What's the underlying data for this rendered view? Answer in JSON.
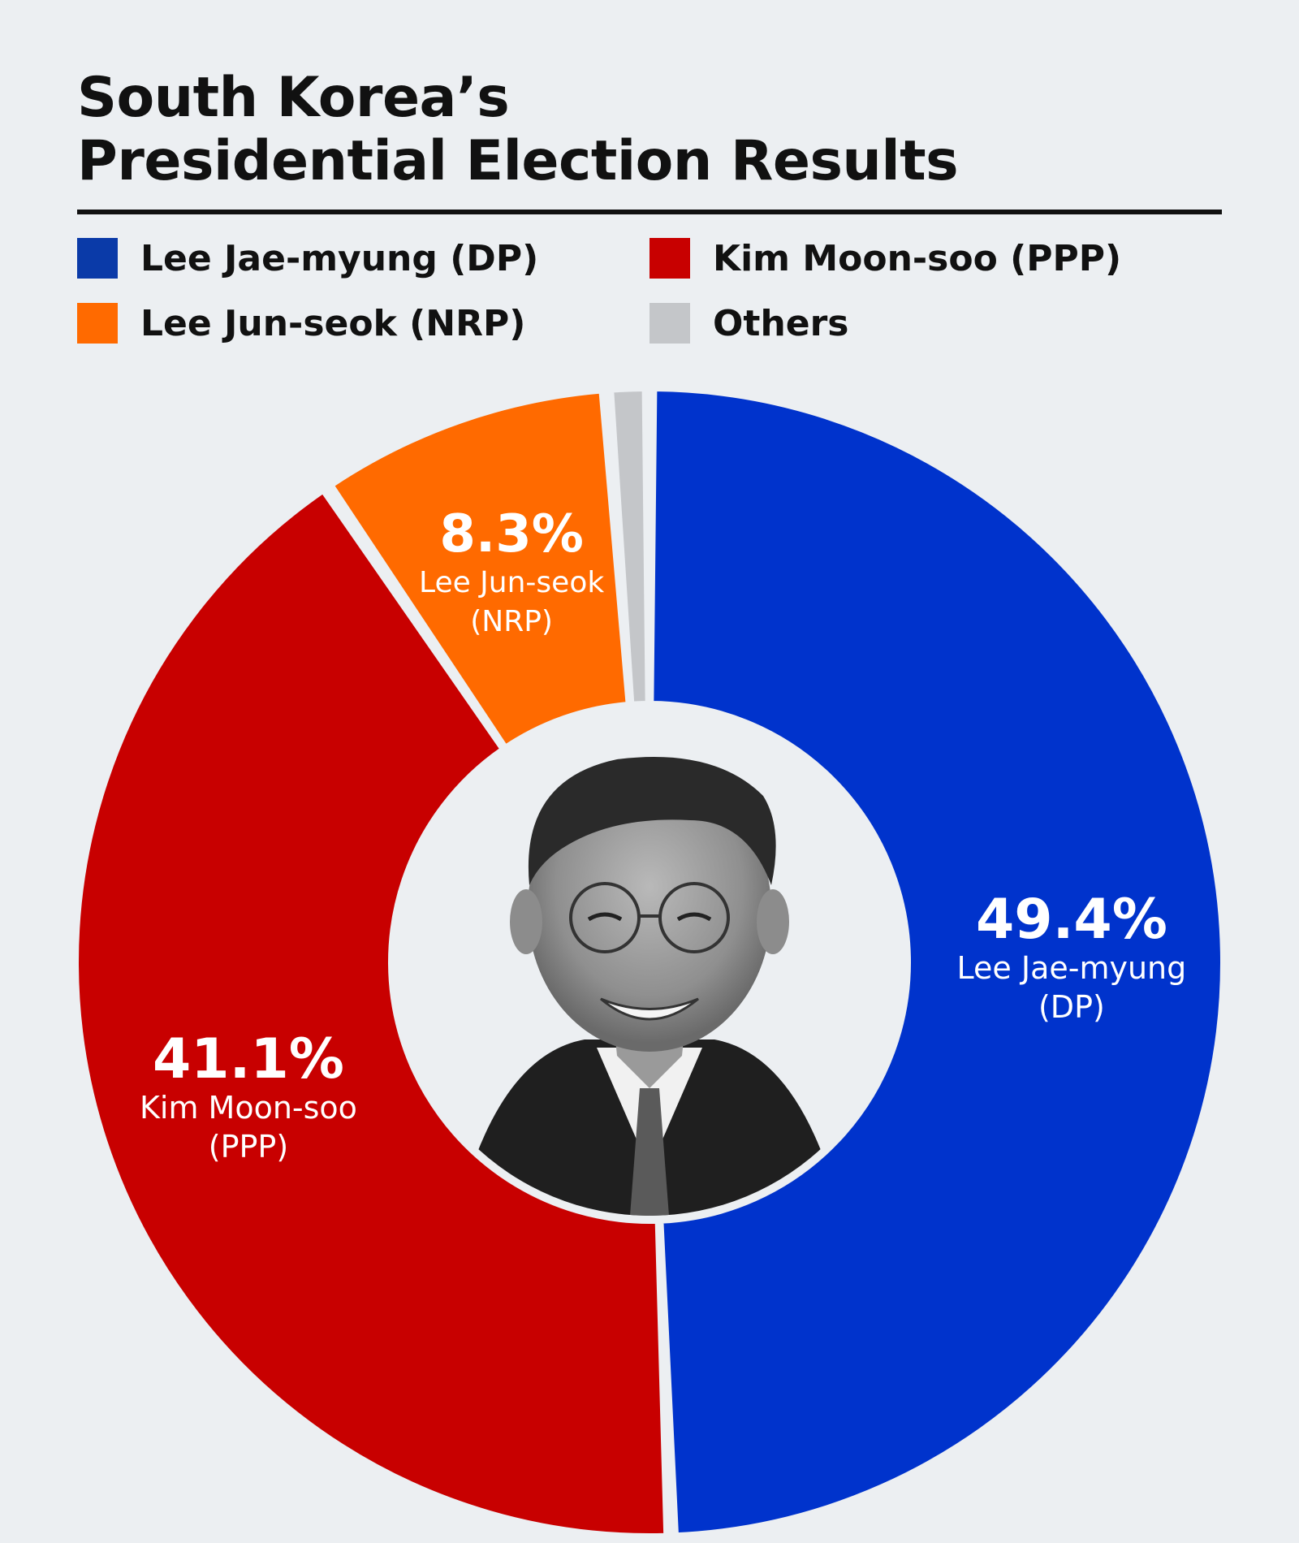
{
  "title_lines": [
    "South Korea’s",
    "Presidential Election Results"
  ],
  "legend": [
    {
      "label": "Lee Jae-myung (DP)",
      "color": "#0a3aa8"
    },
    {
      "label": "Kim Moon-soo (PPP)",
      "color": "#c80000"
    },
    {
      "label": "Lee Jun-seok (NRP)",
      "color": "#ff6a00"
    },
    {
      "label": "Others",
      "color": "#c4c6c9"
    }
  ],
  "chart_data": {
    "type": "pie",
    "style": "donut",
    "title": "South Korea’s Presidential Election Results",
    "slices": [
      {
        "name": "Lee Jae-myung (DP)",
        "label_pct": "49.4%",
        "label_lines": [
          "Lee Jae-myung",
          "(DP)"
        ],
        "value": 49.4,
        "color": "#0033cc"
      },
      {
        "name": "Kim Moon-soo (PPP)",
        "label_pct": "41.1%",
        "label_lines": [
          "Kim Moon-soo",
          "(PPP)"
        ],
        "value": 41.1,
        "color": "#c80000"
      },
      {
        "name": "Lee Jun-seok (NRP)",
        "label_pct": "8.3%",
        "label_lines": [
          "Lee Jun-seok",
          "(NRP)"
        ],
        "value": 8.3,
        "color": "#ff6a00"
      },
      {
        "name": "Others",
        "label_pct": "",
        "label_lines": [],
        "value": 1.2,
        "color": "#c4c6c9"
      }
    ],
    "center_image": "portrait of winning candidate (grayscale)"
  }
}
